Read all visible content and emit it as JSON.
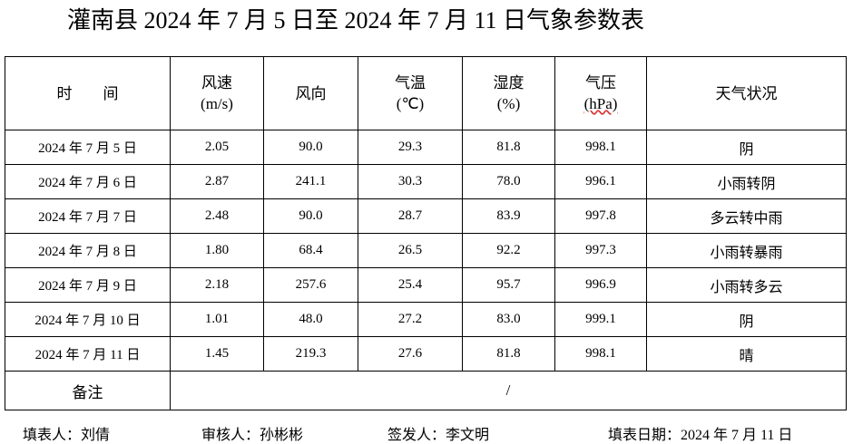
{
  "title": "灌南县 2024 年 7 月 5 日至 2024 年 7 月 11 日气象参数表",
  "table": {
    "columns": [
      [
        "时　　间"
      ],
      [
        "风速",
        "(m/s)"
      ],
      [
        "风向"
      ],
      [
        "气温",
        "(℃)"
      ],
      [
        "湿度",
        "(%)"
      ],
      [
        "气压",
        "(hPa)"
      ],
      [
        "天气状况"
      ]
    ],
    "rows": [
      [
        "2024 年 7 月 5 日",
        "2.05",
        "90.0",
        "29.3",
        "81.8",
        "998.1",
        "阴"
      ],
      [
        "2024 年 7 月 6 日",
        "2.87",
        "241.1",
        "30.3",
        "78.0",
        "996.1",
        "小雨转阴"
      ],
      [
        "2024 年 7 月 7 日",
        "2.48",
        "90.0",
        "28.7",
        "83.9",
        "997.8",
        "多云转中雨"
      ],
      [
        "2024 年 7 月 8 日",
        "1.80",
        "68.4",
        "26.5",
        "92.2",
        "997.3",
        "小雨转暴雨"
      ],
      [
        "2024 年 7 月 9 日",
        "2.18",
        "257.6",
        "25.4",
        "95.7",
        "996.9",
        "小雨转多云"
      ],
      [
        "2024 年 7 月 10 日",
        "1.01",
        "48.0",
        "27.2",
        "83.0",
        "999.1",
        "阴"
      ],
      [
        "2024 年 7 月 11 日",
        "1.45",
        "219.3",
        "27.6",
        "81.8",
        "998.1",
        "晴"
      ]
    ],
    "remark": {
      "label": "备注",
      "value": "/"
    }
  },
  "footer": [
    "填表人：刘倩",
    "审核人：孙彬彬",
    "签发人：李文明",
    "填表日期：2024 年 7 月 11 日"
  ]
}
